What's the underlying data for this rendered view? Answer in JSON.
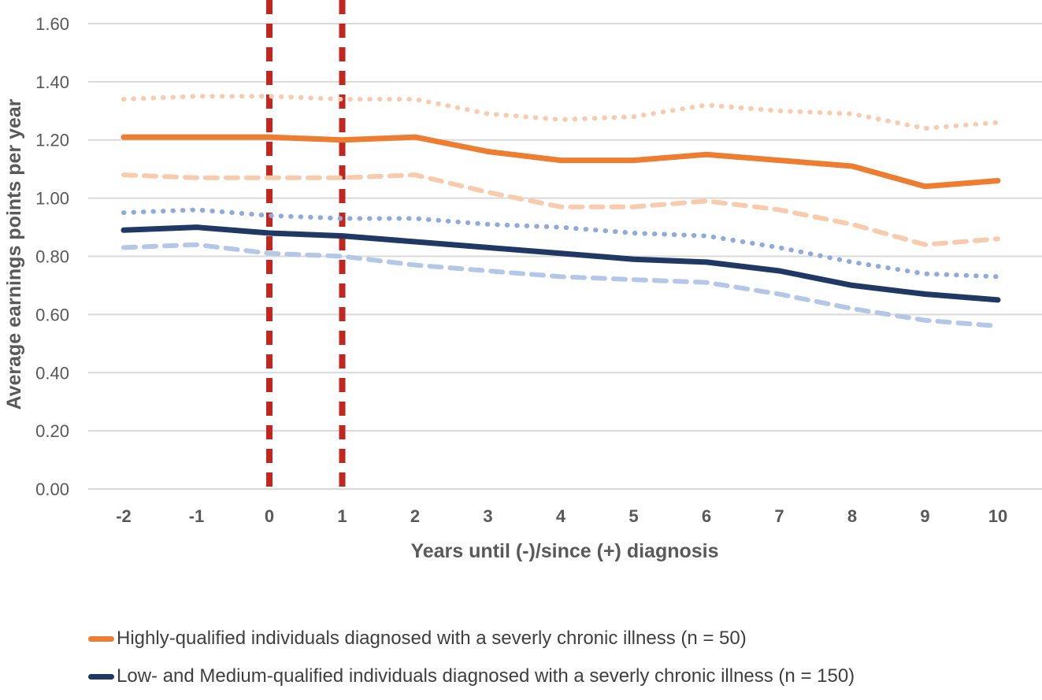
{
  "chart_data": {
    "type": "line",
    "title": "",
    "xlabel": "Years until (-)/since (+) diagnosis",
    "ylabel": "Average earnings points per year",
    "x": [
      -2,
      -1,
      0,
      1,
      2,
      3,
      4,
      5,
      6,
      7,
      8,
      9,
      10
    ],
    "xtick_labels": [
      "-2",
      "-1",
      "0",
      "1",
      "2",
      "3",
      "4",
      "5",
      "6",
      "7",
      "8",
      "9",
      "10"
    ],
    "xlim": [
      -2,
      10
    ],
    "ylim": [
      0,
      1.6
    ],
    "ytick_labels": [
      "0.00",
      "0.20",
      "0.40",
      "0.60",
      "0.80",
      "1.00",
      "1.20",
      "1.40",
      "1.60"
    ],
    "grid": "horizontal",
    "gridline_color": "#D9D9D9",
    "axis_text_color": "#595959",
    "series": [
      {
        "id": "highly-qualified-upper-band",
        "color": "#F8CBAD",
        "style": "dotted",
        "values": [
          1.34,
          1.35,
          1.35,
          1.34,
          1.34,
          1.29,
          1.27,
          1.28,
          1.32,
          1.3,
          1.29,
          1.24,
          1.26
        ]
      },
      {
        "id": "highly-qualified-lower-band",
        "color": "#F8CBAD",
        "style": "dashed",
        "values": [
          1.08,
          1.07,
          1.07,
          1.07,
          1.08,
          1.02,
          0.97,
          0.97,
          0.99,
          0.96,
          0.91,
          0.84,
          0.86
        ]
      },
      {
        "id": "low-medium-qualified-upper-band",
        "color": "#8FAADC",
        "style": "dotted",
        "values": [
          0.95,
          0.96,
          0.94,
          0.93,
          0.93,
          0.91,
          0.9,
          0.88,
          0.87,
          0.83,
          0.78,
          0.74,
          0.73
        ]
      },
      {
        "id": "low-medium-qualified-lower-band",
        "color": "#B4C7E7",
        "style": "dashed",
        "values": [
          0.83,
          0.84,
          0.81,
          0.8,
          0.77,
          0.75,
          0.73,
          0.72,
          0.71,
          0.67,
          0.62,
          0.58,
          0.56
        ]
      },
      {
        "id": "highly-qualified-mean",
        "color": "#ED7D31",
        "style": "solid",
        "values": [
          1.21,
          1.21,
          1.21,
          1.2,
          1.21,
          1.16,
          1.13,
          1.13,
          1.15,
          1.13,
          1.11,
          1.04,
          1.06
        ]
      },
      {
        "id": "low-medium-qualified-mean",
        "color": "#203864",
        "style": "solid",
        "values": [
          0.89,
          0.9,
          0.88,
          0.87,
          0.85,
          0.83,
          0.81,
          0.79,
          0.78,
          0.75,
          0.7,
          0.67,
          0.65
        ]
      }
    ],
    "vlines": [
      {
        "x": 0,
        "color": "#C1271E",
        "style": "dashed"
      },
      {
        "x": 1,
        "color": "#C1271E",
        "style": "dashed"
      }
    ],
    "legend_position": "bottom-left",
    "legend": [
      {
        "label": "Highly-qualified individuals diagnosed with a severly chronic illness (n = 50)",
        "color": "#ED7D31"
      },
      {
        "label": "Low- and Medium-qualified individuals diagnosed with a severly chronic illness (n = 150)",
        "color": "#203864"
      }
    ]
  }
}
